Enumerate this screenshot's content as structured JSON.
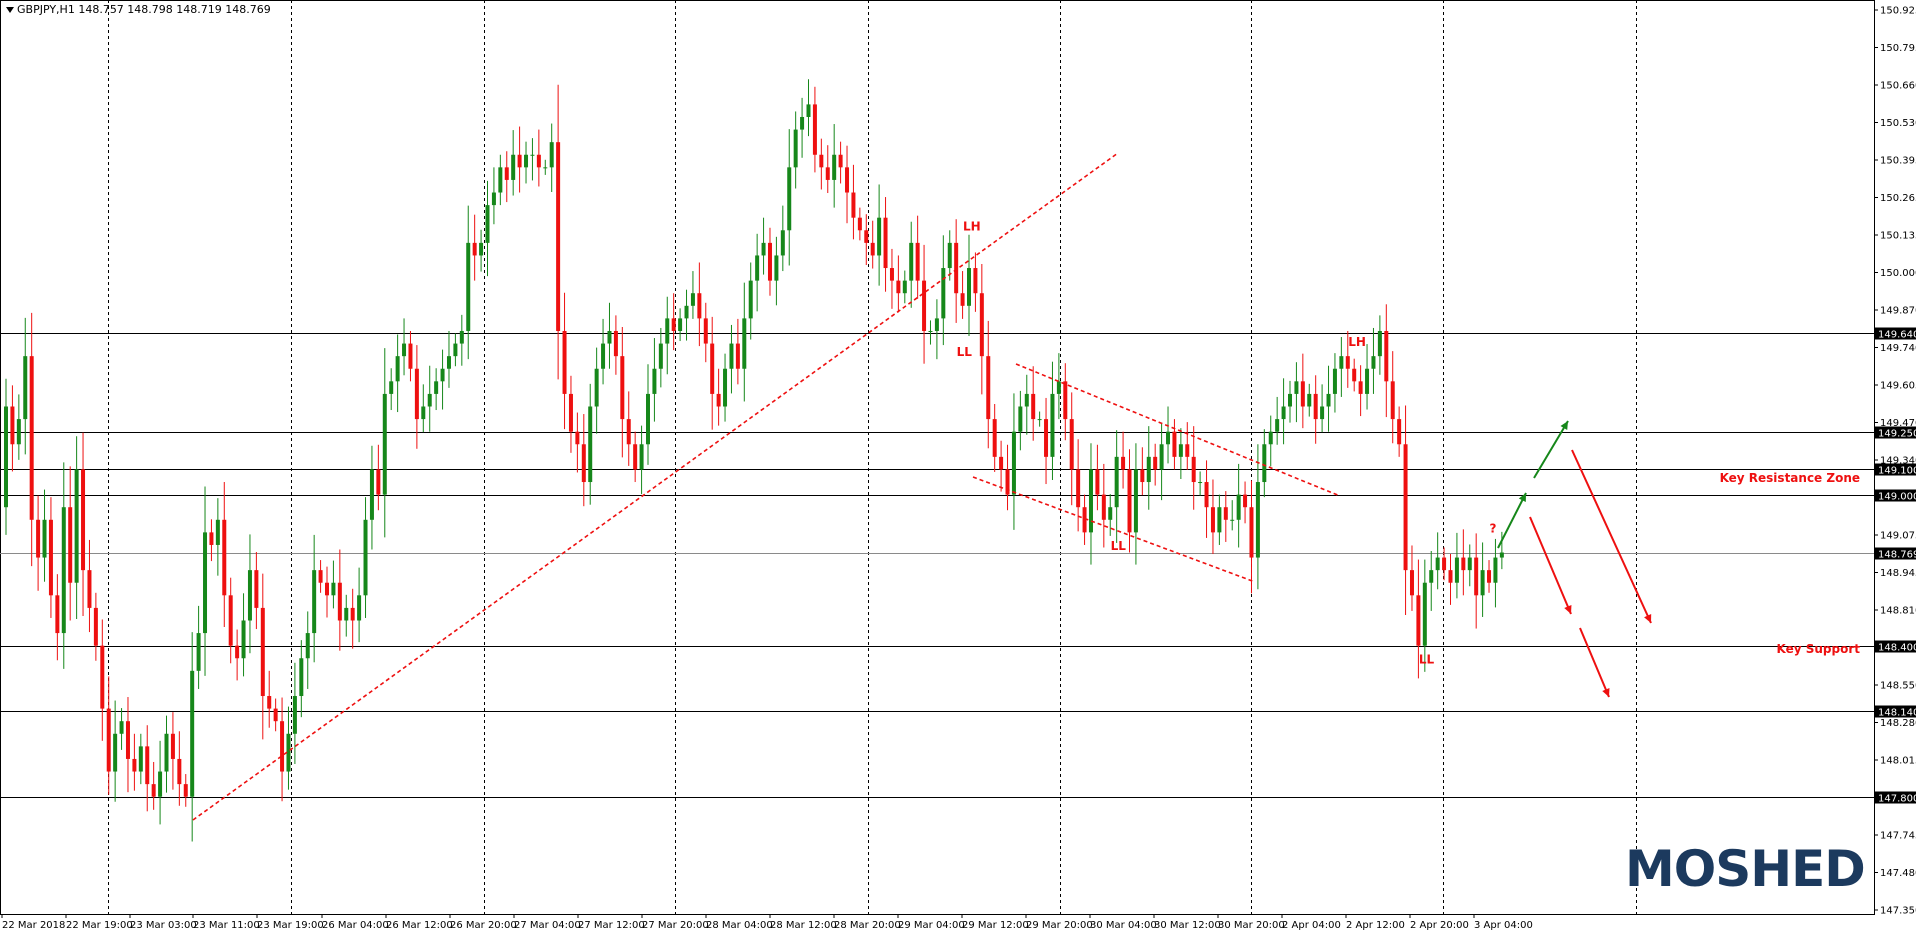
{
  "window": {
    "symbol_line": "GBPJPY,H1  148.757 148.798 148.719 148.769"
  },
  "brand": {
    "logo_text": "MOSHED"
  },
  "colors": {
    "bull": "#16871a",
    "bear": "#ee1010",
    "annotation": "#ee1010",
    "green_arrow": "#16871a",
    "grid": "#000000",
    "brand": "#1c3a5e"
  },
  "chart_data": {
    "type": "candlestick",
    "ylim": [
      147.35,
      150.925
    ],
    "y_ticks": [
      "150.925",
      "150.795",
      "150.660",
      "150.530",
      "150.395",
      "150.265",
      "150.135",
      "150.000",
      "149.870",
      "149.740",
      "149.605",
      "149.470",
      "149.340",
      "149.205",
      "149.075",
      "148.945",
      "148.810",
      "148.680",
      "148.550",
      "148.280",
      "148.015",
      "147.880",
      "147.745",
      "147.480",
      "147.350"
    ],
    "x_ticks": [
      "22 Mar 2018",
      "22 Mar 19:00",
      "23 Mar 03:00",
      "23 Mar 11:00",
      "23 Mar 19:00",
      "26 Mar 04:00",
      "26 Mar 12:00",
      "26 Mar 20:00",
      "27 Mar 04:00",
      "27 Mar 12:00",
      "27 Mar 20:00",
      "28 Mar 04:00",
      "28 Mar 12:00",
      "28 Mar 20:00",
      "29 Mar 04:00",
      "29 Mar 12:00",
      "29 Mar 20:00",
      "30 Mar 04:00",
      "30 Mar 12:00",
      "30 Mar 20:00",
      "2 Apr 04:00",
      "2 Apr 12:00",
      "2 Apr 20:00",
      "3 Apr 04:00"
    ],
    "horizontal_levels": [
      {
        "price": 149.64,
        "label": "149.640"
      },
      {
        "price": 149.25,
        "label": "149.250"
      },
      {
        "price": 149.1,
        "label": "149.100"
      },
      {
        "price": 149.0,
        "label": "149.000"
      },
      {
        "price": 148.4,
        "label": "148.400"
      },
      {
        "price": 148.14,
        "label": "148.140"
      },
      {
        "price": 147.8,
        "label": "147.800"
      }
    ],
    "current_price": {
      "price": 148.769,
      "label": "148.769"
    },
    "zone_labels": [
      {
        "text": "Key Resistance Zone",
        "price": 149.05
      },
      {
        "text": "Key Support",
        "price": 148.37
      }
    ],
    "swing_labels": [
      {
        "text": "LH",
        "bar": 150,
        "price": 150.05
      },
      {
        "text": "LL",
        "bar": 149,
        "price": 149.55
      },
      {
        "text": "LL",
        "bar": 173,
        "price": 148.78
      },
      {
        "text": "LH",
        "bar": 210,
        "price": 149.59
      },
      {
        "text": "LL",
        "bar": 221,
        "price": 148.33
      },
      {
        "text": "?",
        "bar": 232,
        "price": 148.85
      }
    ],
    "open": 148.95,
    "closes": [
      149.35,
      149.2,
      149.3,
      149.55,
      148.9,
      148.75,
      148.9,
      148.6,
      148.45,
      148.95,
      148.65,
      149.1,
      148.7,
      148.55,
      148.4,
      148.15,
      147.9,
      148.05,
      148.1,
      147.95,
      147.9,
      148.0,
      147.85,
      147.8,
      147.9,
      148.05,
      147.95,
      147.85,
      147.8,
      148.3,
      148.45,
      148.85,
      148.8,
      148.9,
      148.6,
      148.4,
      148.35,
      148.5,
      148.7,
      148.55,
      148.2,
      148.15,
      148.1,
      147.9,
      148.05,
      148.2,
      148.35,
      148.45,
      148.7,
      148.65,
      148.6,
      148.65,
      148.5,
      148.55,
      148.5,
      148.6,
      148.9,
      149.1,
      149.0,
      149.4,
      149.45,
      149.55,
      149.6,
      149.5,
      149.3,
      149.35,
      149.4,
      149.45,
      149.5,
      149.55,
      149.6,
      149.65,
      150.0,
      149.95,
      150.0,
      150.15,
      150.2,
      150.3,
      150.25,
      150.35,
      150.3,
      150.35,
      150.35,
      150.3,
      150.3,
      150.4,
      149.65,
      149.4,
      149.25,
      149.2,
      149.05,
      149.35,
      149.5,
      149.6,
      149.65,
      149.55,
      149.3,
      149.2,
      149.1,
      149.2,
      149.4,
      149.5,
      149.6,
      149.7,
      149.65,
      149.7,
      149.75,
      149.8,
      149.7,
      149.6,
      149.4,
      149.35,
      149.5,
      149.6,
      149.5,
      149.7,
      149.85,
      149.95,
      150.0,
      149.85,
      149.95,
      150.05,
      150.3,
      150.45,
      150.5,
      150.55,
      150.35,
      150.3,
      150.25,
      150.35,
      150.3,
      150.2,
      150.1,
      150.05,
      150.0,
      149.95,
      150.1,
      149.9,
      149.85,
      149.8,
      149.85,
      150.0,
      149.85,
      149.65,
      149.65,
      149.7,
      149.9,
      150.0,
      149.8,
      149.75,
      149.9,
      149.8,
      149.55,
      149.3,
      149.15,
      149.1,
      149.0,
      149.25,
      149.35,
      149.4,
      149.3,
      149.3,
      149.15,
      149.4,
      149.45,
      149.3,
      149.1,
      148.95,
      148.85,
      149.1,
      149.0,
      148.9,
      148.95,
      149.15,
      149.1,
      148.85,
      149.1,
      149.05,
      149.15,
      149.1,
      149.2,
      149.25,
      149.15,
      149.2,
      149.15,
      149.05,
      149.05,
      148.95,
      148.85,
      148.95,
      148.9,
      148.9,
      149.0,
      148.95,
      148.75,
      149.05,
      149.2,
      149.25,
      149.3,
      149.35,
      149.4,
      149.45,
      149.35,
      149.4,
      149.3,
      149.35,
      149.4,
      149.5,
      149.55,
      149.5,
      149.45,
      149.4,
      149.5,
      149.55,
      149.65,
      149.45,
      149.3,
      149.2,
      148.7,
      148.6,
      148.4,
      148.65,
      148.7,
      148.75,
      148.7,
      148.65,
      148.75,
      148.7,
      148.75,
      148.6,
      148.7,
      148.65,
      148.75,
      148.77
    ]
  }
}
